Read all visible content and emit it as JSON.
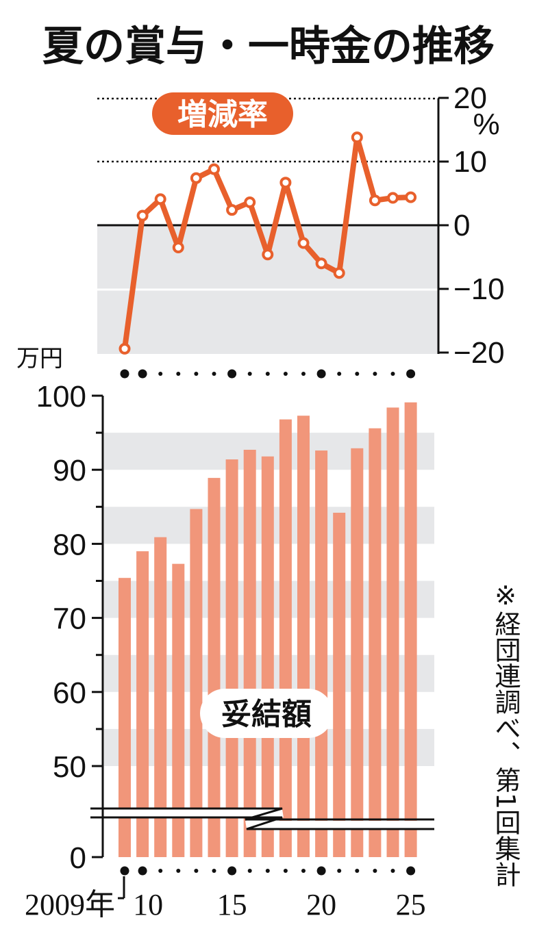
{
  "title": "夏の賞与・一時金の推移",
  "note": "※経団連調べ、第1回集計",
  "colors": {
    "line": "#e8602c",
    "bar": "#f1967a",
    "band": "#e6e7e9",
    "text": "#111111"
  },
  "chart_data": [
    {
      "type": "line",
      "label": "増減率",
      "unit": "%",
      "x": [
        2009,
        2010,
        2011,
        2012,
        2013,
        2014,
        2015,
        2016,
        2017,
        2018,
        2019,
        2020,
        2021,
        2022,
        2023,
        2024,
        2025
      ],
      "values": [
        -19.4,
        1.5,
        4.1,
        -3.5,
        7.4,
        8.8,
        2.4,
        3.6,
        -4.6,
        6.7,
        -2.8,
        -6.0,
        -7.5,
        13.8,
        3.9,
        4.3,
        4.4
      ],
      "ylim": [
        -20,
        20
      ],
      "y_ticks": [
        "20",
        "10",
        "0",
        "−10",
        "−20"
      ],
      "grid": "dotted at 20 and 10, solid at 0"
    },
    {
      "type": "bar",
      "label": "妥結額",
      "unit": "万円",
      "x": [
        2009,
        2010,
        2011,
        2012,
        2013,
        2014,
        2015,
        2016,
        2017,
        2018,
        2019,
        2020,
        2021,
        2022,
        2023,
        2024,
        2025
      ],
      "values": [
        75.4,
        79.0,
        80.9,
        77.3,
        84.7,
        88.9,
        91.4,
        92.7,
        91.8,
        96.8,
        97.3,
        92.6,
        84.2,
        92.9,
        95.6,
        98.4,
        99.1
      ],
      "ylim": [
        40,
        100
      ],
      "axis_break": true,
      "y_ticks": [
        "100",
        "90",
        "80",
        "70",
        "60",
        "50",
        "0"
      ]
    }
  ],
  "x_ticks": [
    "2009年",
    "10",
    "15",
    "20",
    "25"
  ]
}
